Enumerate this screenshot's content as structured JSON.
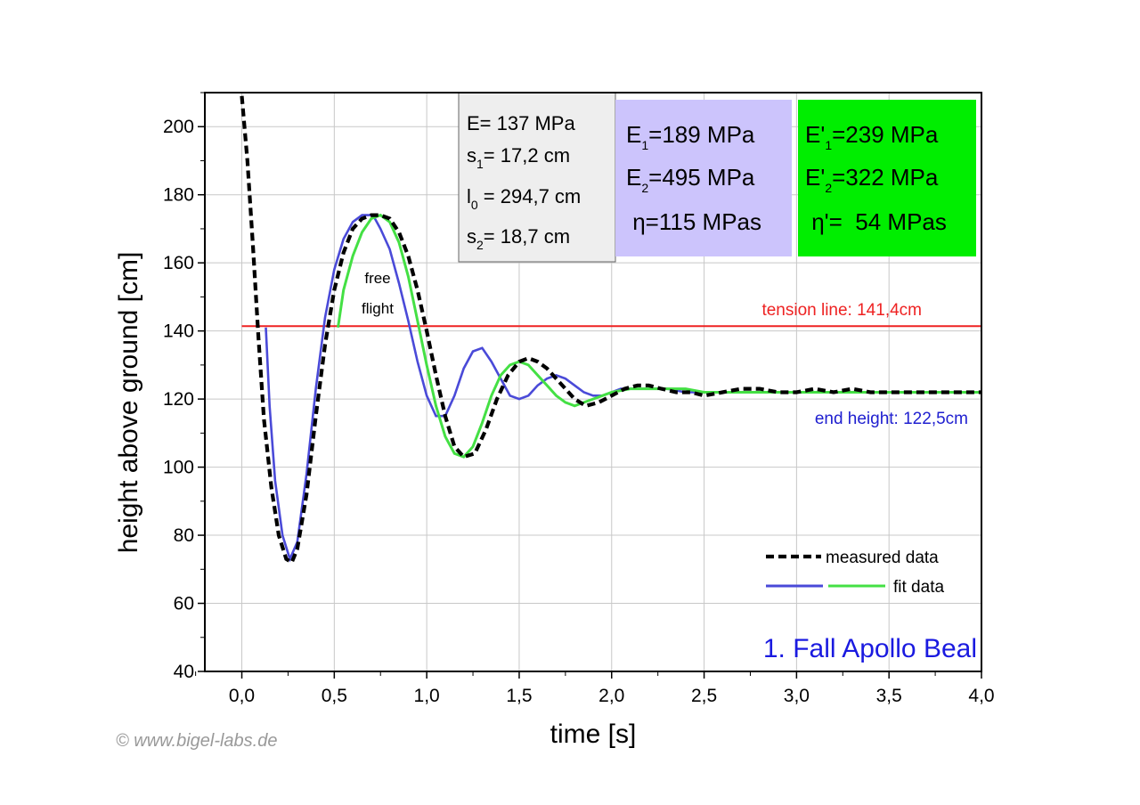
{
  "chart_data": {
    "type": "line",
    "title": "",
    "xlabel": "time [s]",
    "ylabel": "height above ground [cm]",
    "xlim": [
      -0.2,
      4.0
    ],
    "ylim": [
      40,
      210
    ],
    "x_ticks": [
      "0,0",
      "0,5",
      "1,0",
      "1,5",
      "2,0",
      "2,5",
      "3,0",
      "3,5",
      "4,0"
    ],
    "y_ticks": [
      "40",
      "60",
      "80",
      "100",
      "120",
      "140",
      "160",
      "180",
      "200"
    ],
    "grid": true,
    "legend_position": "bottom-right",
    "colors": {
      "measured": "#000000",
      "fit_blue": "#4a4ad8",
      "fit_blue_light": "#8080e0",
      "fit_green": "#44e044",
      "tension": "#ee2222",
      "end_height_label": "#2020d0",
      "caption": "#1a1ae0",
      "panel_grey": "#eeeeee",
      "panel_purple": "#ccc4fc",
      "panel_green": "#00ee00"
    },
    "series": [
      {
        "name": "measured data",
        "style": "dashed",
        "x": [
          0.0,
          0.03,
          0.06,
          0.09,
          0.12,
          0.16,
          0.2,
          0.24,
          0.27,
          0.3,
          0.35,
          0.4,
          0.45,
          0.5,
          0.55,
          0.6,
          0.65,
          0.7,
          0.75,
          0.8,
          0.85,
          0.9,
          0.95,
          1.0,
          1.05,
          1.1,
          1.15,
          1.2,
          1.26,
          1.32,
          1.38,
          1.44,
          1.5,
          1.55,
          1.6,
          1.65,
          1.7,
          1.75,
          1.8,
          1.86,
          1.93,
          2.0,
          2.07,
          2.14,
          2.2,
          2.27,
          2.35,
          2.43,
          2.5,
          2.6,
          2.7,
          2.8,
          2.9,
          3.0,
          3.1,
          3.2,
          3.3,
          3.4,
          3.5,
          3.6,
          3.7,
          3.8,
          3.9,
          4.0
        ],
        "values": [
          209,
          190,
          165,
          138,
          114,
          94,
          80,
          73,
          72,
          76,
          92,
          115,
          136,
          152,
          163,
          170,
          173,
          174,
          174,
          173,
          169,
          162,
          152,
          140,
          127,
          115,
          106,
          103,
          104,
          111,
          120,
          127,
          131,
          132,
          131,
          129,
          126,
          123,
          120,
          118,
          119,
          121,
          123,
          124,
          124,
          123,
          122,
          122,
          121,
          122,
          123,
          123,
          122,
          122,
          123,
          122,
          123,
          122,
          122,
          122,
          122,
          122,
          122,
          122
        ]
      },
      {
        "name": "fit data",
        "x": [
          0.13,
          0.15,
          0.18,
          0.22,
          0.26,
          0.3,
          0.35,
          0.4,
          0.45,
          0.5,
          0.55,
          0.6,
          0.65,
          0.7,
          0.72,
          0.75,
          0.8,
          0.85,
          0.9,
          0.95,
          1.0,
          1.05,
          1.1,
          1.15,
          1.2,
          1.25,
          1.3,
          1.35,
          1.4,
          1.45,
          1.5,
          1.55,
          1.6,
          1.65,
          1.7,
          1.75,
          1.8,
          1.85,
          1.9,
          1.95,
          2.0,
          2.05,
          2.1,
          2.15,
          2.2,
          2.3,
          2.4,
          2.5,
          2.6,
          2.7,
          2.8,
          2.9,
          3.0,
          3.2,
          3.5,
          4.0
        ],
        "values": [
          141,
          118,
          96,
          80,
          73,
          78,
          98,
          123,
          144,
          158,
          167,
          172,
          174,
          174,
          173,
          170,
          164,
          154,
          143,
          131,
          121,
          115,
          115,
          121,
          129,
          134,
          135,
          131,
          126,
          121,
          120,
          121,
          124,
          126,
          127,
          126,
          124,
          122,
          121,
          121,
          122,
          123,
          123,
          123,
          123,
          123,
          122,
          122,
          122,
          122,
          122,
          122,
          122,
          122,
          122,
          122
        ]
      },
      {
        "name": "fit data (green)",
        "x": [
          0.52,
          0.55,
          0.6,
          0.65,
          0.7,
          0.75,
          0.8,
          0.85,
          0.9,
          0.95,
          1.0,
          1.05,
          1.1,
          1.15,
          1.2,
          1.25,
          1.3,
          1.35,
          1.4,
          1.45,
          1.5,
          1.55,
          1.6,
          1.65,
          1.7,
          1.75,
          1.8,
          1.85,
          1.9,
          1.95,
          2.0,
          2.1,
          2.2,
          2.3,
          2.4,
          2.5,
          2.6,
          2.7,
          2.8,
          2.9,
          3.0,
          3.2,
          3.5,
          4.0
        ],
        "values": [
          141,
          152,
          162,
          169,
          173,
          174,
          172,
          166,
          156,
          143,
          130,
          118,
          109,
          104,
          103,
          106,
          113,
          121,
          127,
          130,
          131,
          130,
          127,
          124,
          121,
          119,
          118,
          119,
          120,
          121,
          122,
          123,
          123,
          123,
          123,
          122,
          122,
          122,
          122,
          122,
          122,
          122,
          122,
          122
        ]
      }
    ],
    "reference_lines": [
      {
        "label": "tension line: 141,4cm",
        "y": 141.4
      },
      {
        "label": "end height: 122,5cm",
        "y": 122.5
      }
    ],
    "annotations": {
      "free_flight": [
        "free",
        "flight"
      ],
      "caption": "1. Fall Apollo Beal",
      "copyright": "© www.bigel-labs.de"
    },
    "legend": {
      "measured": "measured data",
      "fit": "fit data"
    },
    "parameters": {
      "grey": [
        {
          "main": "E= 137 MPa",
          "sub": "",
          "rest": ""
        },
        {
          "main": "s",
          "sub": "1",
          "rest": "=   17,2 cm"
        },
        {
          "main": "l",
          "sub": "0",
          "rest": " = 294,7 cm"
        },
        {
          "main": "s",
          "sub": "2",
          "rest": "=   18,7 cm"
        }
      ],
      "purple": [
        {
          "main": "E",
          "sub": "1",
          "rest": "=189 MPa"
        },
        {
          "main": "E",
          "sub": "2",
          "rest": "=495 MPa"
        },
        {
          "main": " η=115 MPas",
          "sub": "",
          "rest": ""
        }
      ],
      "green": [
        {
          "main": "E'",
          "sub": "1",
          "rest": "=239 MPa"
        },
        {
          "main": "E'",
          "sub": "2",
          "rest": "=322 MPa"
        },
        {
          "main": " η'=  54 MPas",
          "sub": "",
          "rest": ""
        }
      ]
    }
  }
}
